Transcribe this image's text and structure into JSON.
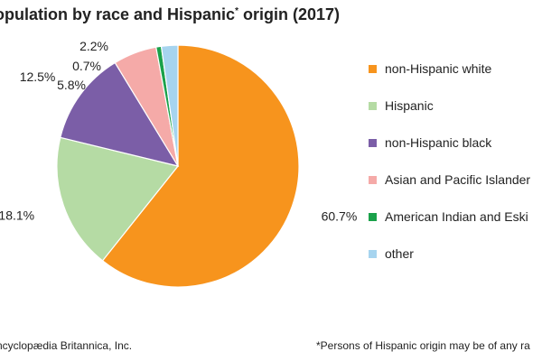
{
  "title": {
    "text_before_mark": "opulation by race and Hispanic",
    "mark": "*",
    "text_after_mark": " origin (2017)"
  },
  "chart_data": {
    "type": "pie",
    "title": "opulation by race and Hispanic* origin (2017)",
    "start_at": "top",
    "direction": "clockwise",
    "legend_position": "right",
    "slices": [
      {
        "label": "non-Hispanic white",
        "value": 60.7,
        "value_label": "60.7%",
        "color": "#f7941d"
      },
      {
        "label": "Hispanic",
        "value": 18.1,
        "value_label": "18.1%",
        "color": "#b5dba4"
      },
      {
        "label": "non-Hispanic black",
        "value": 12.5,
        "value_label": "12.5%",
        "color": "#7b5ea7"
      },
      {
        "label": "Asian and Pacific Islander",
        "value": 5.8,
        "value_label": "5.8%",
        "color": "#f5aaa8"
      },
      {
        "label": "American Indian and Eski",
        "value": 0.7,
        "value_label": "0.7%",
        "color": "#1aa14a"
      },
      {
        "label": "other",
        "value": 2.2,
        "value_label": "2.2%",
        "color": "#a6d4ef"
      }
    ]
  },
  "credit": "ncyclopædia Britannica, Inc.",
  "footnote": "*Persons of Hispanic origin may be of any ra"
}
